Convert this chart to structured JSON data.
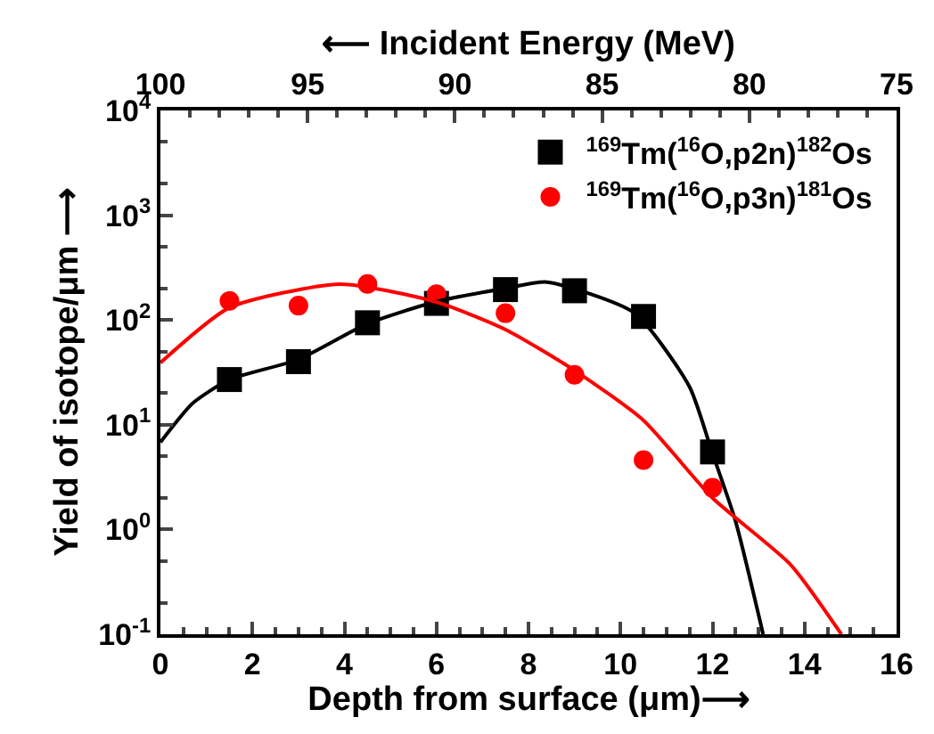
{
  "chart_data": {
    "type": "scatter",
    "xlabel": "Depth from surface (μm)⟶",
    "ylabel": "Yield of isotope/μm ⟶",
    "x2label": "⟵ Incident Energy (MeV)",
    "xlim": [
      0,
      16
    ],
    "xticks": [
      0,
      2,
      4,
      6,
      8,
      10,
      12,
      14,
      16
    ],
    "x2lim": [
      100,
      75
    ],
    "x2ticks": [
      100,
      95,
      90,
      85,
      80,
      75
    ],
    "ylim": [
      0.1,
      10000
    ],
    "log": "y",
    "yticks": [
      {
        "value": 0.1,
        "label": "10$^{-1}$"
      },
      {
        "value": 1,
        "label": "10$^{0}$"
      },
      {
        "value": 10,
        "label": "10$^{1}$"
      },
      {
        "value": 100,
        "label": "10$^{2}$"
      },
      {
        "value": 1000,
        "label": "10$^{3}$"
      },
      {
        "value": 10000,
        "label": "10$^{4}$"
      }
    ],
    "legend": "top right",
    "series": [
      {
        "name": "$^{169}$Tm($^{16}$O,p2n)$^{182}$Os",
        "marker": "square",
        "color": "#000000",
        "x": [
          1.5,
          3,
          4.5,
          6,
          7.5,
          9,
          10.5,
          12
        ],
        "values": [
          27,
          40,
          94,
          144,
          195,
          190,
          108,
          5.5
        ]
      },
      {
        "name": "$^{169}$Tm($^{16}$O,p3n)$^{181}$Os",
        "marker": "circle",
        "color": "#ff0000",
        "x": [
          1.5,
          3,
          4.5,
          6,
          7.5,
          9,
          10.5,
          12
        ],
        "values": [
          152,
          137,
          221,
          176,
          116,
          30,
          4.6,
          2.5
        ]
      },
      {
        "type": "line",
        "marker": "none",
        "line_style": "solid",
        "color": "#000000",
        "x": [
          0,
          0.7,
          1.5,
          3,
          4.5,
          6,
          7.5,
          8.4,
          10.3,
          11.5,
          12,
          12.5,
          13.1
        ],
        "values": [
          6.8,
          16,
          27,
          42,
          92,
          150,
          200,
          230,
          117,
          23,
          5.3,
          1.2,
          0.1
        ]
      },
      {
        "type": "line",
        "marker": "none",
        "line_style": "solid",
        "color": "#ff0000",
        "x": [
          0,
          1.5,
          3.9,
          6,
          7.5,
          9,
          10.5,
          12,
          13.7,
          14.8
        ],
        "values": [
          39,
          131,
          220,
          148,
          81,
          33,
          11,
          2,
          0.46,
          0.1
        ]
      }
    ]
  }
}
